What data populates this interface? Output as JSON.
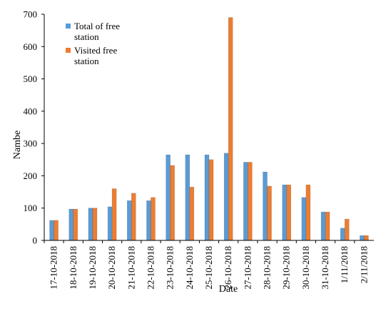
{
  "chart_data": {
    "type": "bar",
    "title": "",
    "xlabel": "Date",
    "ylabel": "Nambe",
    "ylim": [
      0,
      700
    ],
    "yticks": [
      0,
      100,
      200,
      300,
      400,
      500,
      600,
      700
    ],
    "grid": false,
    "legend_position": "top-left",
    "categories": [
      "17-10-2018",
      "18-10-2018",
      "19-10-2018",
      "20-10-2018",
      "21-10-2018",
      "22-10-2018",
      "23-10-2018",
      "24-10-2018",
      "25-10-2018",
      "26-10-2018",
      "27-10-2018",
      "28-10-2018",
      "29-10-2018",
      "30-10-2018",
      "31-10-2018",
      "1/11/2018",
      "2/11/2018"
    ],
    "series": [
      {
        "name": "Total of free station",
        "color": "#5b9bd5",
        "values": [
          62,
          97,
          100,
          104,
          123,
          123,
          265,
          265,
          265,
          270,
          242,
          212,
          172,
          133,
          88,
          38,
          15
        ]
      },
      {
        "name": "Visited free station",
        "color": "#ed7d31",
        "values": [
          62,
          97,
          100,
          160,
          146,
          133,
          232,
          165,
          250,
          690,
          242,
          168,
          172,
          172,
          88,
          66,
          15
        ]
      }
    ]
  }
}
